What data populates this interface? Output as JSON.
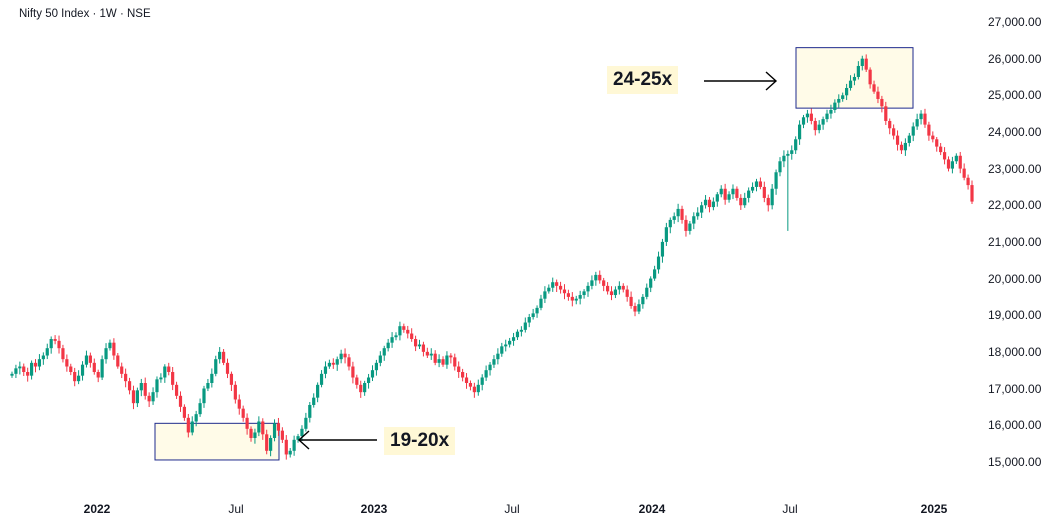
{
  "chart_data": {
    "type": "candlestick",
    "title": "Nifty 50 Index · 1W · NSE",
    "y_axis": {
      "ticks": [
        27000,
        26000,
        25000,
        24000,
        23000,
        22000,
        21000,
        20000,
        19000,
        18000,
        17000,
        16000,
        15000
      ],
      "tick_labels": [
        "27,000.00",
        "26,000.00",
        "25,000.00",
        "24,000.00",
        "23,000.00",
        "22,000.00",
        "21,000.00",
        "20,000.00",
        "19,000.00",
        "18,000.00",
        "17,000.00",
        "16,000.00",
        "15,000.00"
      ],
      "ylim": [
        14200,
        27400
      ],
      "position": "right"
    },
    "x_axis": {
      "ticks": [
        "2022",
        "Jul",
        "2023",
        "Jul",
        "2024",
        "Jul",
        "2025"
      ],
      "bold_ticks": [
        "2022",
        "2023",
        "2024",
        "2025"
      ],
      "range": [
        "2021-09",
        "2025-02"
      ]
    },
    "colors": {
      "up": "#089981",
      "down": "#f23645",
      "box_border": "#1e2a8c",
      "box_fill": "#fffbe8",
      "label_bg": "#fff8d6"
    },
    "grid": false,
    "weekly_closes": [
      17400,
      17550,
      17600,
      17450,
      17350,
      17700,
      17600,
      17800,
      17900,
      18100,
      18350,
      18300,
      18100,
      17800,
      17600,
      17450,
      17200,
      17350,
      17650,
      17900,
      17700,
      17450,
      17300,
      17800,
      18100,
      18250,
      17900,
      17600,
      17400,
      17200,
      16950,
      16600,
      16950,
      17150,
      16800,
      16650,
      16900,
      17250,
      17300,
      17600,
      17450,
      17100,
      16800,
      16500,
      16200,
      15800,
      16100,
      16300,
      16600,
      17000,
      17150,
      17400,
      17800,
      18000,
      17700,
      17400,
      17100,
      16700,
      16450,
      16200,
      15900,
      15650,
      15800,
      16100,
      15750,
      15300,
      15650,
      16050,
      15850,
      15600,
      15200,
      15300,
      15600,
      15700,
      15900,
      16200,
      16550,
      16750,
      17100,
      17400,
      17600,
      17700,
      17650,
      17800,
      17950,
      17850,
      17600,
      17300,
      17100,
      16900,
      17150,
      17300,
      17500,
      17700,
      17900,
      18100,
      18250,
      18400,
      18450,
      18700,
      18600,
      18500,
      18350,
      18150,
      18200,
      18000,
      17900,
      17950,
      17700,
      17800,
      17650,
      17900,
      17850,
      17600,
      17450,
      17300,
      17150,
      17050,
      16900,
      17100,
      17300,
      17500,
      17650,
      17800,
      17950,
      18150,
      18200,
      18300,
      18400,
      18550,
      18600,
      18800,
      18950,
      19050,
      19200,
      19450,
      19650,
      19750,
      19900,
      19800,
      19700,
      19600,
      19500,
      19400,
      19450,
      19550,
      19650,
      19800,
      19950,
      20100,
      19950,
      19800,
      19650,
      19550,
      19700,
      19800,
      19700,
      19500,
      19250,
      19100,
      19300,
      19500,
      19750,
      20000,
      20250,
      20600,
      21000,
      21400,
      21600,
      21700,
      21900,
      21600,
      21300,
      21500,
      21700,
      21800,
      22000,
      22150,
      21950,
      22100,
      22300,
      22450,
      22150,
      22300,
      22450,
      22200,
      22000,
      22200,
      22400,
      22500,
      22650,
      22500,
      22200,
      22000,
      22450,
      22900,
      23200,
      23350,
      23400,
      23500,
      23800,
      24200,
      24400,
      24500,
      24300,
      24050,
      24200,
      24350,
      24500,
      24600,
      24800,
      24900,
      25000,
      25200,
      25400,
      25500,
      25800,
      26000,
      25700,
      25300,
      25100,
      24900,
      24700,
      24300,
      24100,
      23900,
      23650,
      23500,
      23700,
      23900,
      24150,
      24350,
      24500,
      24200,
      23900,
      23800,
      23600,
      23450,
      23250,
      23000,
      23200,
      23350,
      23000,
      22750,
      22550,
      22100
    ],
    "annotations": [
      {
        "text": "19-20x",
        "box_x_range": [
          "2022-03",
          "2022-09"
        ],
        "box_y_range": [
          15050,
          16050
        ],
        "arrow": "points-left-to-box"
      },
      {
        "text": "24-25x",
        "box_x_range": [
          "2024-07",
          "2024-12"
        ],
        "box_y_range": [
          24650,
          26300
        ],
        "arrow": "points-right-to-box"
      }
    ]
  }
}
